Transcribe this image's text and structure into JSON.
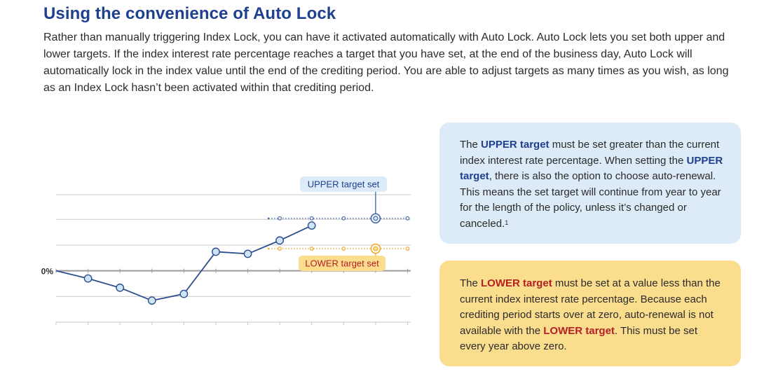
{
  "heading": "Using the convenience of Auto Lock",
  "intro_text": "Rather than manually triggering Index Lock, you can have it activated automatically with Auto Lock. Auto Lock lets you set both upper and lower targets. If the index interest rate percentage reaches a target that you have set, at the end of the business day, Auto Lock will automatically lock in the index value until the end of the crediting period. You are able to adjust targets as many times as you wish, as long as an Index Lock hasn’t been activated within that crediting period.",
  "upper_card": {
    "t1": "The ",
    "h1": "UPPER target",
    "t2": " must be set greater than the current index interest rate percentage. When setting the ",
    "h2": "UPPER target",
    "t3": ", there is also the option to choose auto-renewal. This means the set target will continue from year to year for the length of the policy, unless it’s changed or canceled.",
    "footnote": "1"
  },
  "lower_card": {
    "t1": "The ",
    "h1": "LOWER target",
    "t2": " must be set at a value less than the current index interest rate percentage. Because each crediting period starts over at zero, auto-renewal is not available with the ",
    "h2": "LOWER target",
    "t3": ". This must be set every year above zero."
  },
  "colors": {
    "navy": "#1f3f8f",
    "line": "#2b4f8e",
    "point_fill": "#cfe4f6",
    "upper_bg": "#dcebf7",
    "lower_bg": "#fbdd8e",
    "lower_stroke": "#f0a830",
    "lower_text": "#b41f24",
    "grid": "#c9c9c9"
  },
  "chart_data": {
    "type": "line",
    "zero_label": "0%",
    "x": [
      0,
      1,
      2,
      3,
      4,
      5,
      6,
      7,
      8
    ],
    "values": [
      0,
      -1.5,
      -3.3,
      -5.8,
      -4.5,
      3.7,
      3.3,
      5.9,
      8.8
    ],
    "upper_target": 10.2,
    "lower_target": 4.3,
    "upper_label": "UPPER target set",
    "lower_label": "LOWER target set",
    "upper_dotted_points": [
      7,
      8,
      9,
      10,
      11
    ],
    "upper_set_point": 10,
    "lower_dotted_points": [
      7,
      8,
      9,
      10,
      11
    ],
    "lower_set_point": 10,
    "ylim": [
      -10,
      14.8
    ],
    "gridlines": [
      14.8,
      10,
      5,
      0,
      -5,
      -10
    ],
    "xlim": [
      0,
      11.1
    ]
  }
}
